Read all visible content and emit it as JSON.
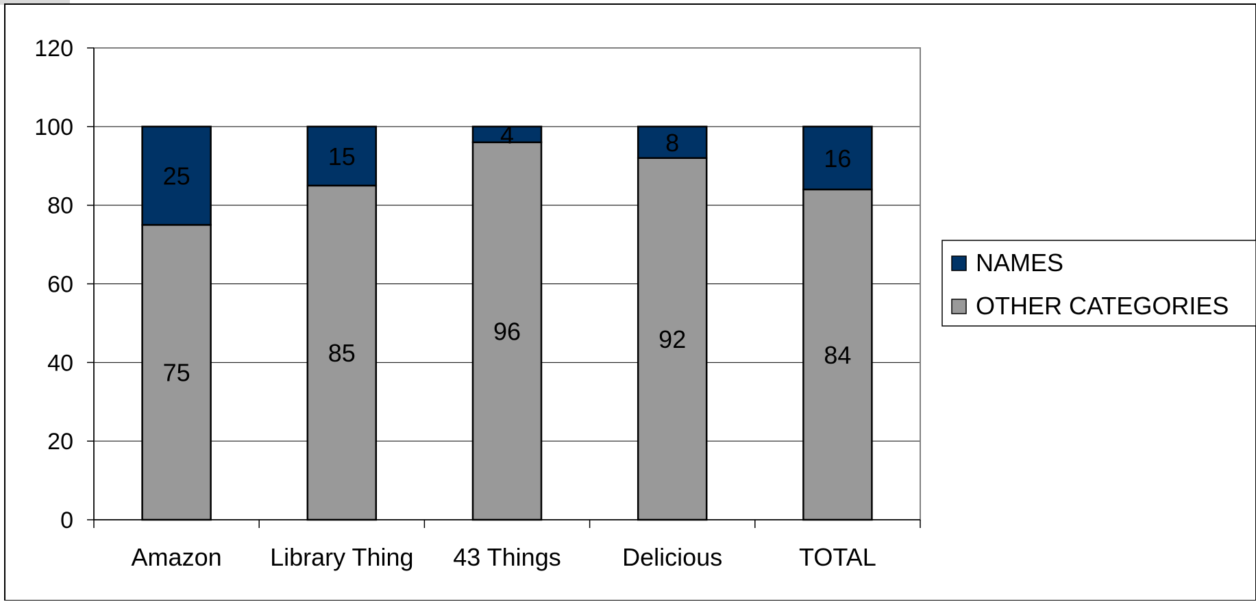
{
  "chart_data": {
    "type": "bar",
    "stacked": true,
    "title": "",
    "xlabel": "",
    "ylabel": "",
    "categories": [
      "Amazon",
      "Library Thing",
      "43 Things",
      "Delicious",
      "TOTAL"
    ],
    "series": [
      {
        "name": "OTHER CATEGORIES",
        "values": [
          75,
          85,
          96,
          92,
          84
        ],
        "color": "#999999"
      },
      {
        "name": "NAMES",
        "values": [
          25,
          15,
          4,
          8,
          16
        ],
        "color": "#003366"
      }
    ],
    "ylim": [
      0,
      120
    ],
    "yticks": [
      0,
      20,
      40,
      60,
      80,
      100,
      120
    ],
    "grid": true,
    "legend": {
      "position": "right",
      "entries": [
        "NAMES",
        "OTHER CATEGORIES"
      ]
    },
    "colors": {
      "plot_border": "#808080",
      "gridline": "#000000",
      "bar_outline": "#000000",
      "background": "#ffffff"
    }
  }
}
